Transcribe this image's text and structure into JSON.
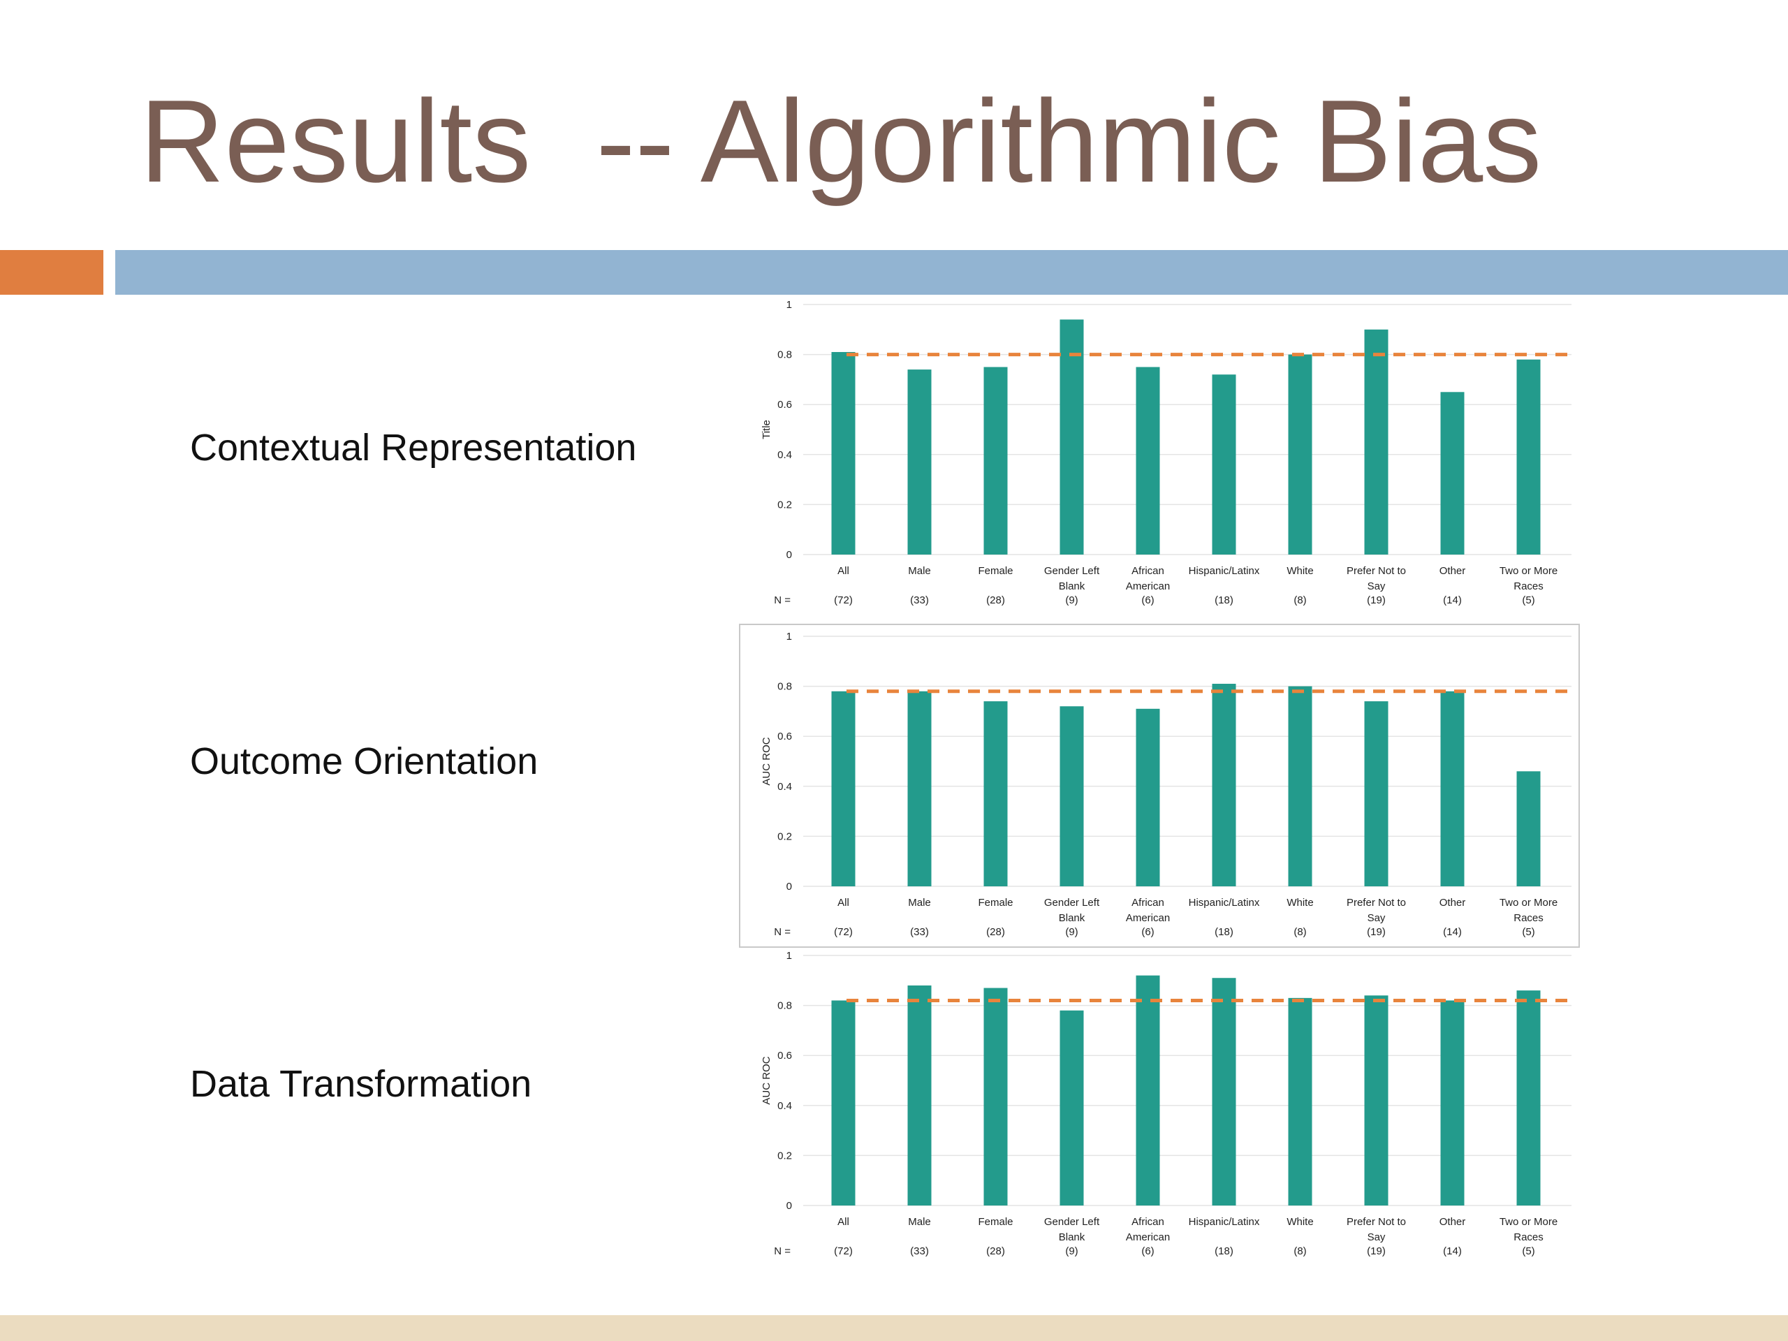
{
  "title": "Results  -- Algorithmic Bias",
  "colors": {
    "title": "#7a5e54",
    "accent_orange": "#e07e40",
    "accent_blue": "#92b4d2",
    "bar": "#239b8c",
    "reference_line": "#e8843c",
    "footer": "#ebdcc0"
  },
  "rows": [
    {
      "label": "Contextual Representation"
    },
    {
      "label": "Outcome Orientation"
    },
    {
      "label": "Data Transformation"
    }
  ],
  "chart_data": [
    {
      "type": "bar",
      "title": "",
      "ylabel": "Title",
      "ylim": [
        0,
        1
      ],
      "yticks": [
        "0",
        "0.2",
        "0.4",
        "0.6",
        "0.8",
        "1"
      ],
      "categories": [
        [
          "All"
        ],
        [
          "Male"
        ],
        [
          "Female"
        ],
        [
          "Gender Left",
          "Blank"
        ],
        [
          "African",
          "American"
        ],
        [
          "Hispanic/Latinx"
        ],
        [
          "White"
        ],
        [
          "Prefer Not to",
          "Say"
        ],
        [
          "Other"
        ],
        [
          "Two or More",
          "Races"
        ]
      ],
      "n_prefix": "N =",
      "n_labels": [
        "(72)",
        "(33)",
        "(28)",
        "(9)",
        "(6)",
        "(18)",
        "(8)",
        "(19)",
        "(14)",
        "(5)"
      ],
      "values": [
        0.81,
        0.74,
        0.75,
        0.94,
        0.75,
        0.72,
        0.8,
        0.9,
        0.65,
        0.78
      ],
      "reference_line": 0.8,
      "grid": true
    },
    {
      "type": "bar",
      "title": "",
      "ylabel": "AUC ROC",
      "ylim": [
        0,
        1
      ],
      "yticks": [
        "0",
        "0.2",
        "0.4",
        "0.6",
        "0.8",
        "1"
      ],
      "categories": [
        [
          "All"
        ],
        [
          "Male"
        ],
        [
          "Female"
        ],
        [
          "Gender Left",
          "Blank"
        ],
        [
          "African",
          "American"
        ],
        [
          "Hispanic/Latinx"
        ],
        [
          "White"
        ],
        [
          "Prefer Not to",
          "Say"
        ],
        [
          "Other"
        ],
        [
          "Two or More",
          "Races"
        ]
      ],
      "n_prefix": "N =",
      "n_labels": [
        "(72)",
        "(33)",
        "(28)",
        "(9)",
        "(6)",
        "(18)",
        "(8)",
        "(19)",
        "(14)",
        "(5)"
      ],
      "values": [
        0.78,
        0.78,
        0.74,
        0.72,
        0.71,
        0.81,
        0.8,
        0.74,
        0.78,
        0.46
      ],
      "reference_line": 0.78,
      "grid": true
    },
    {
      "type": "bar",
      "title": "",
      "ylabel": "AUC ROC",
      "ylim": [
        0,
        1
      ],
      "yticks": [
        "0",
        "0.2",
        "0.4",
        "0.6",
        "0.8",
        "1"
      ],
      "categories": [
        [
          "All"
        ],
        [
          "Male"
        ],
        [
          "Female"
        ],
        [
          "Gender Left",
          "Blank"
        ],
        [
          "African",
          "American"
        ],
        [
          "Hispanic/Latinx"
        ],
        [
          "White"
        ],
        [
          "Prefer Not to",
          "Say"
        ],
        [
          "Other"
        ],
        [
          "Two or More",
          "Races"
        ]
      ],
      "n_prefix": "N =",
      "n_labels": [
        "(72)",
        "(33)",
        "(28)",
        "(9)",
        "(6)",
        "(18)",
        "(8)",
        "(19)",
        "(14)",
        "(5)"
      ],
      "values": [
        0.82,
        0.88,
        0.87,
        0.78,
        0.92,
        0.91,
        0.83,
        0.84,
        0.82,
        0.86
      ],
      "reference_line": 0.82,
      "grid": true
    }
  ]
}
